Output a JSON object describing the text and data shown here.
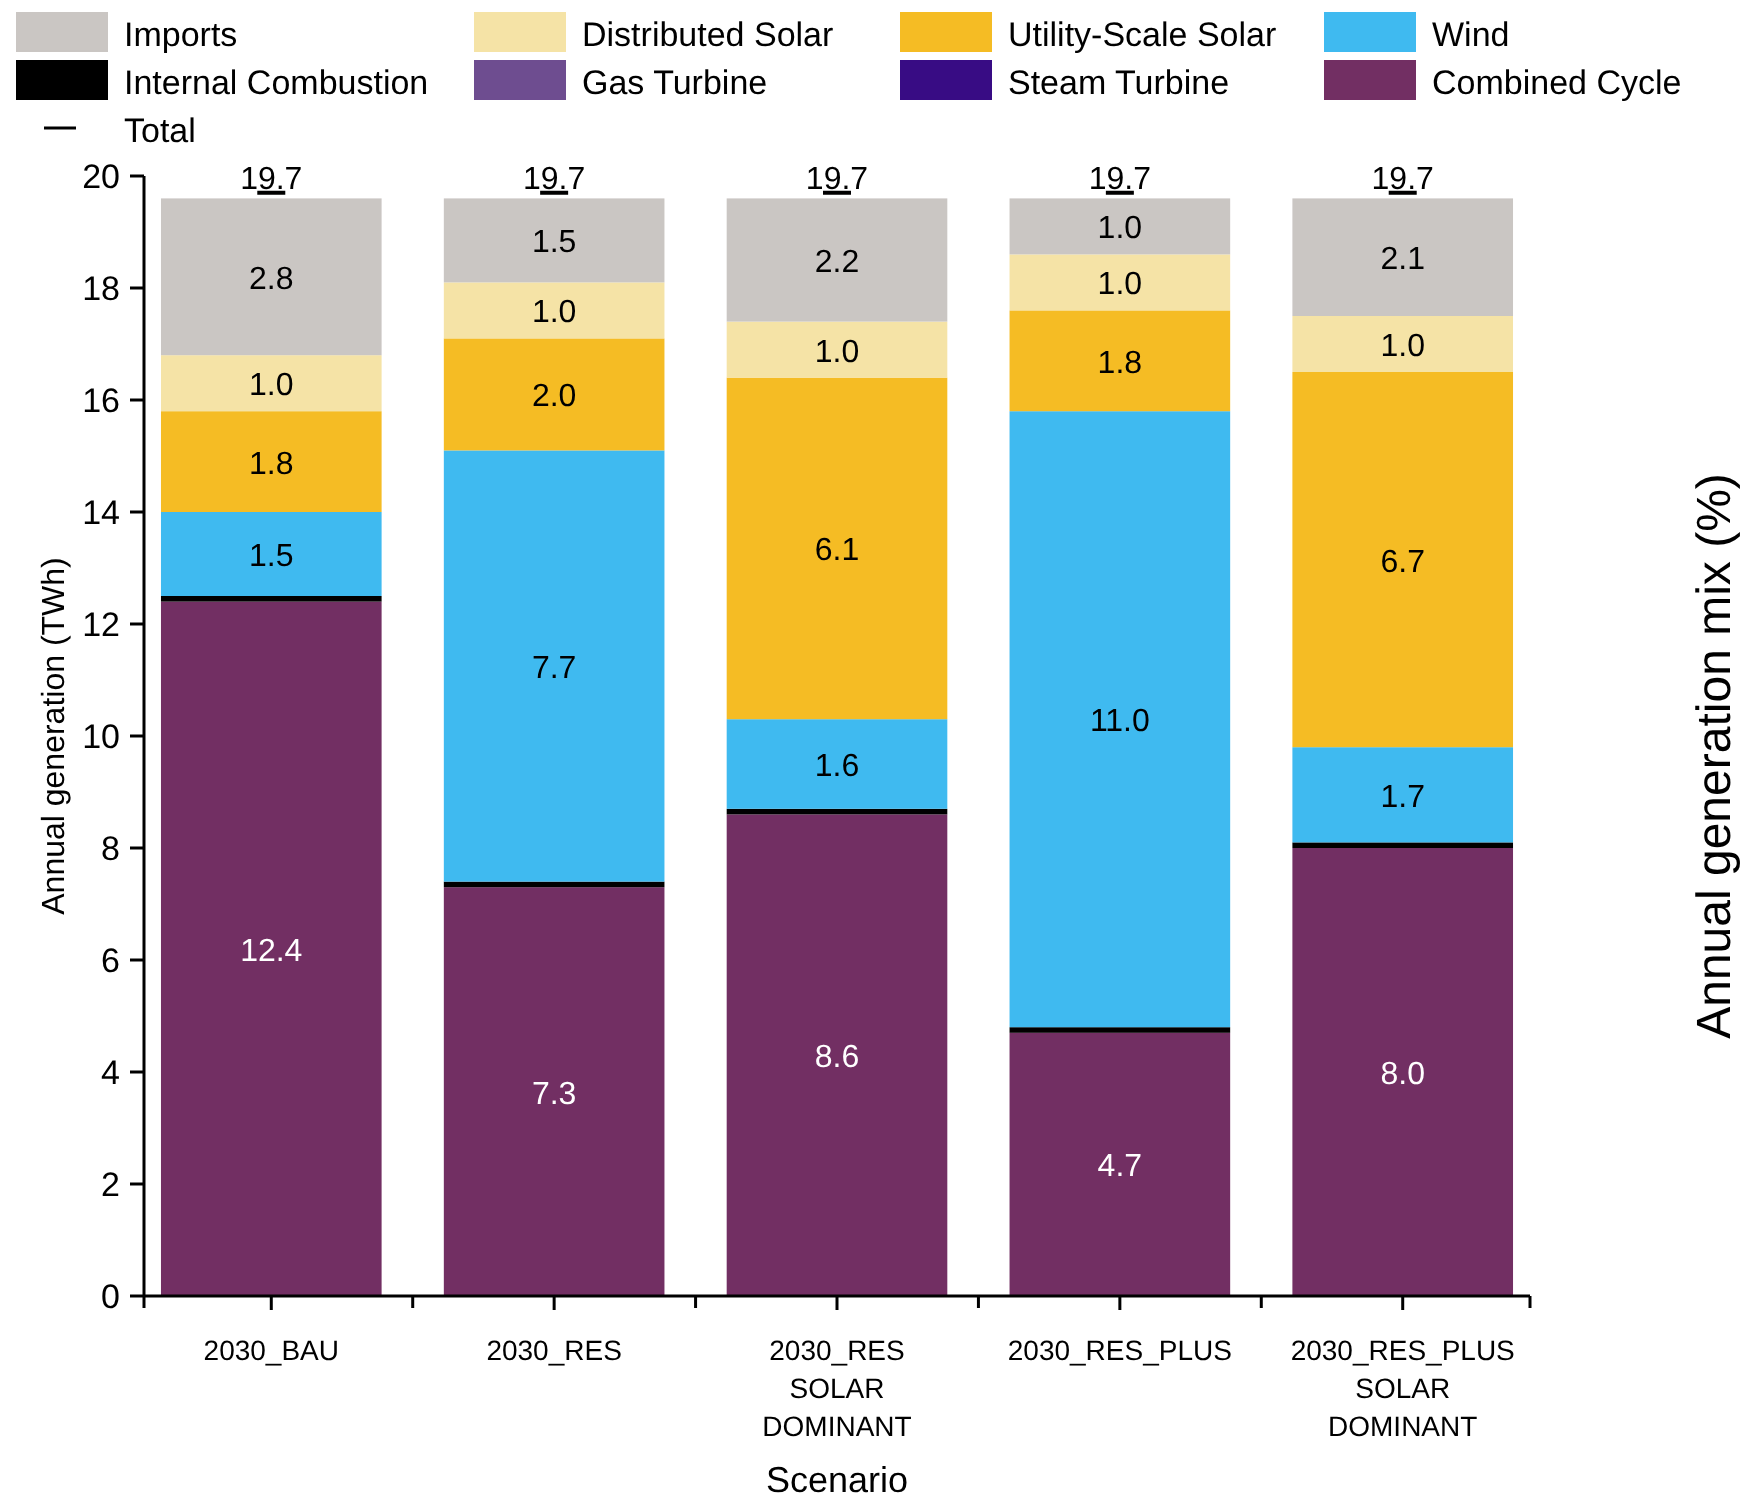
{
  "chart_data": {
    "type": "bar",
    "stacked": true,
    "xlabel": "Scenario",
    "ylabel": "Annual generation (TWh)",
    "y2label": "Annual generation mix (%)",
    "categories": [
      "2030_BAU",
      "2030_RES",
      "2030_RES SOLAR DOMINANT",
      "2030_RES_PLUS",
      "2030_RES_PLUS SOLAR DOMINANT"
    ],
    "ylim": [
      0,
      20
    ],
    "yticks": [
      0,
      2,
      4,
      6,
      8,
      10,
      12,
      14,
      16,
      18,
      20
    ],
    "grid": false,
    "legend": "top",
    "series": [
      {
        "name": "Combined Cycle",
        "color": "#722f63",
        "values": [
          12.4,
          7.3,
          8.6,
          4.7,
          8.0
        ],
        "value_labels": [
          "12.4",
          "7.3",
          "8.6",
          "4.7",
          "8.0"
        ]
      },
      {
        "name": "Steam Turbine",
        "color": "#380c84",
        "values": [
          0,
          0,
          0,
          0,
          0
        ]
      },
      {
        "name": "Gas Turbine",
        "color": "#6e4d90",
        "values": [
          0,
          0,
          0,
          0,
          0
        ]
      },
      {
        "name": "Internal Combustion",
        "color": "#000000",
        "values": [
          0.1,
          0.1,
          0.1,
          0.1,
          0.1
        ]
      },
      {
        "name": "Wind",
        "color": "#3fbaf0",
        "values": [
          1.5,
          7.7,
          1.6,
          11.0,
          1.7
        ],
        "value_labels": [
          "1.5",
          "7.7",
          "1.6",
          "11.0",
          "1.7"
        ]
      },
      {
        "name": "Utility-Scale Solar",
        "color": "#f5bc24",
        "values": [
          1.8,
          2.0,
          6.1,
          1.8,
          6.7
        ],
        "value_labels": [
          "1.8",
          "2.0",
          "6.1",
          "1.8",
          "6.7"
        ]
      },
      {
        "name": "Distributed Solar",
        "color": "#f5e3a6",
        "values": [
          1.0,
          1.0,
          1.0,
          1.0,
          1.0
        ],
        "value_labels": [
          "1.0",
          "1.0",
          "1.0",
          "1.0",
          "1.0"
        ]
      },
      {
        "name": "Imports",
        "color": "#cac6c3",
        "values": [
          2.8,
          1.5,
          2.2,
          1.0,
          2.1
        ],
        "value_labels": [
          "2.8",
          "1.5",
          "2.2",
          "1.0",
          "2.1"
        ]
      },
      {
        "name": "Total",
        "type": "scatter",
        "color": "#000000",
        "values": [
          19.7,
          19.7,
          19.7,
          19.7,
          19.7
        ],
        "value_labels": [
          "19.7",
          "19.7",
          "19.7",
          "19.7",
          "19.7"
        ]
      }
    ]
  }
}
